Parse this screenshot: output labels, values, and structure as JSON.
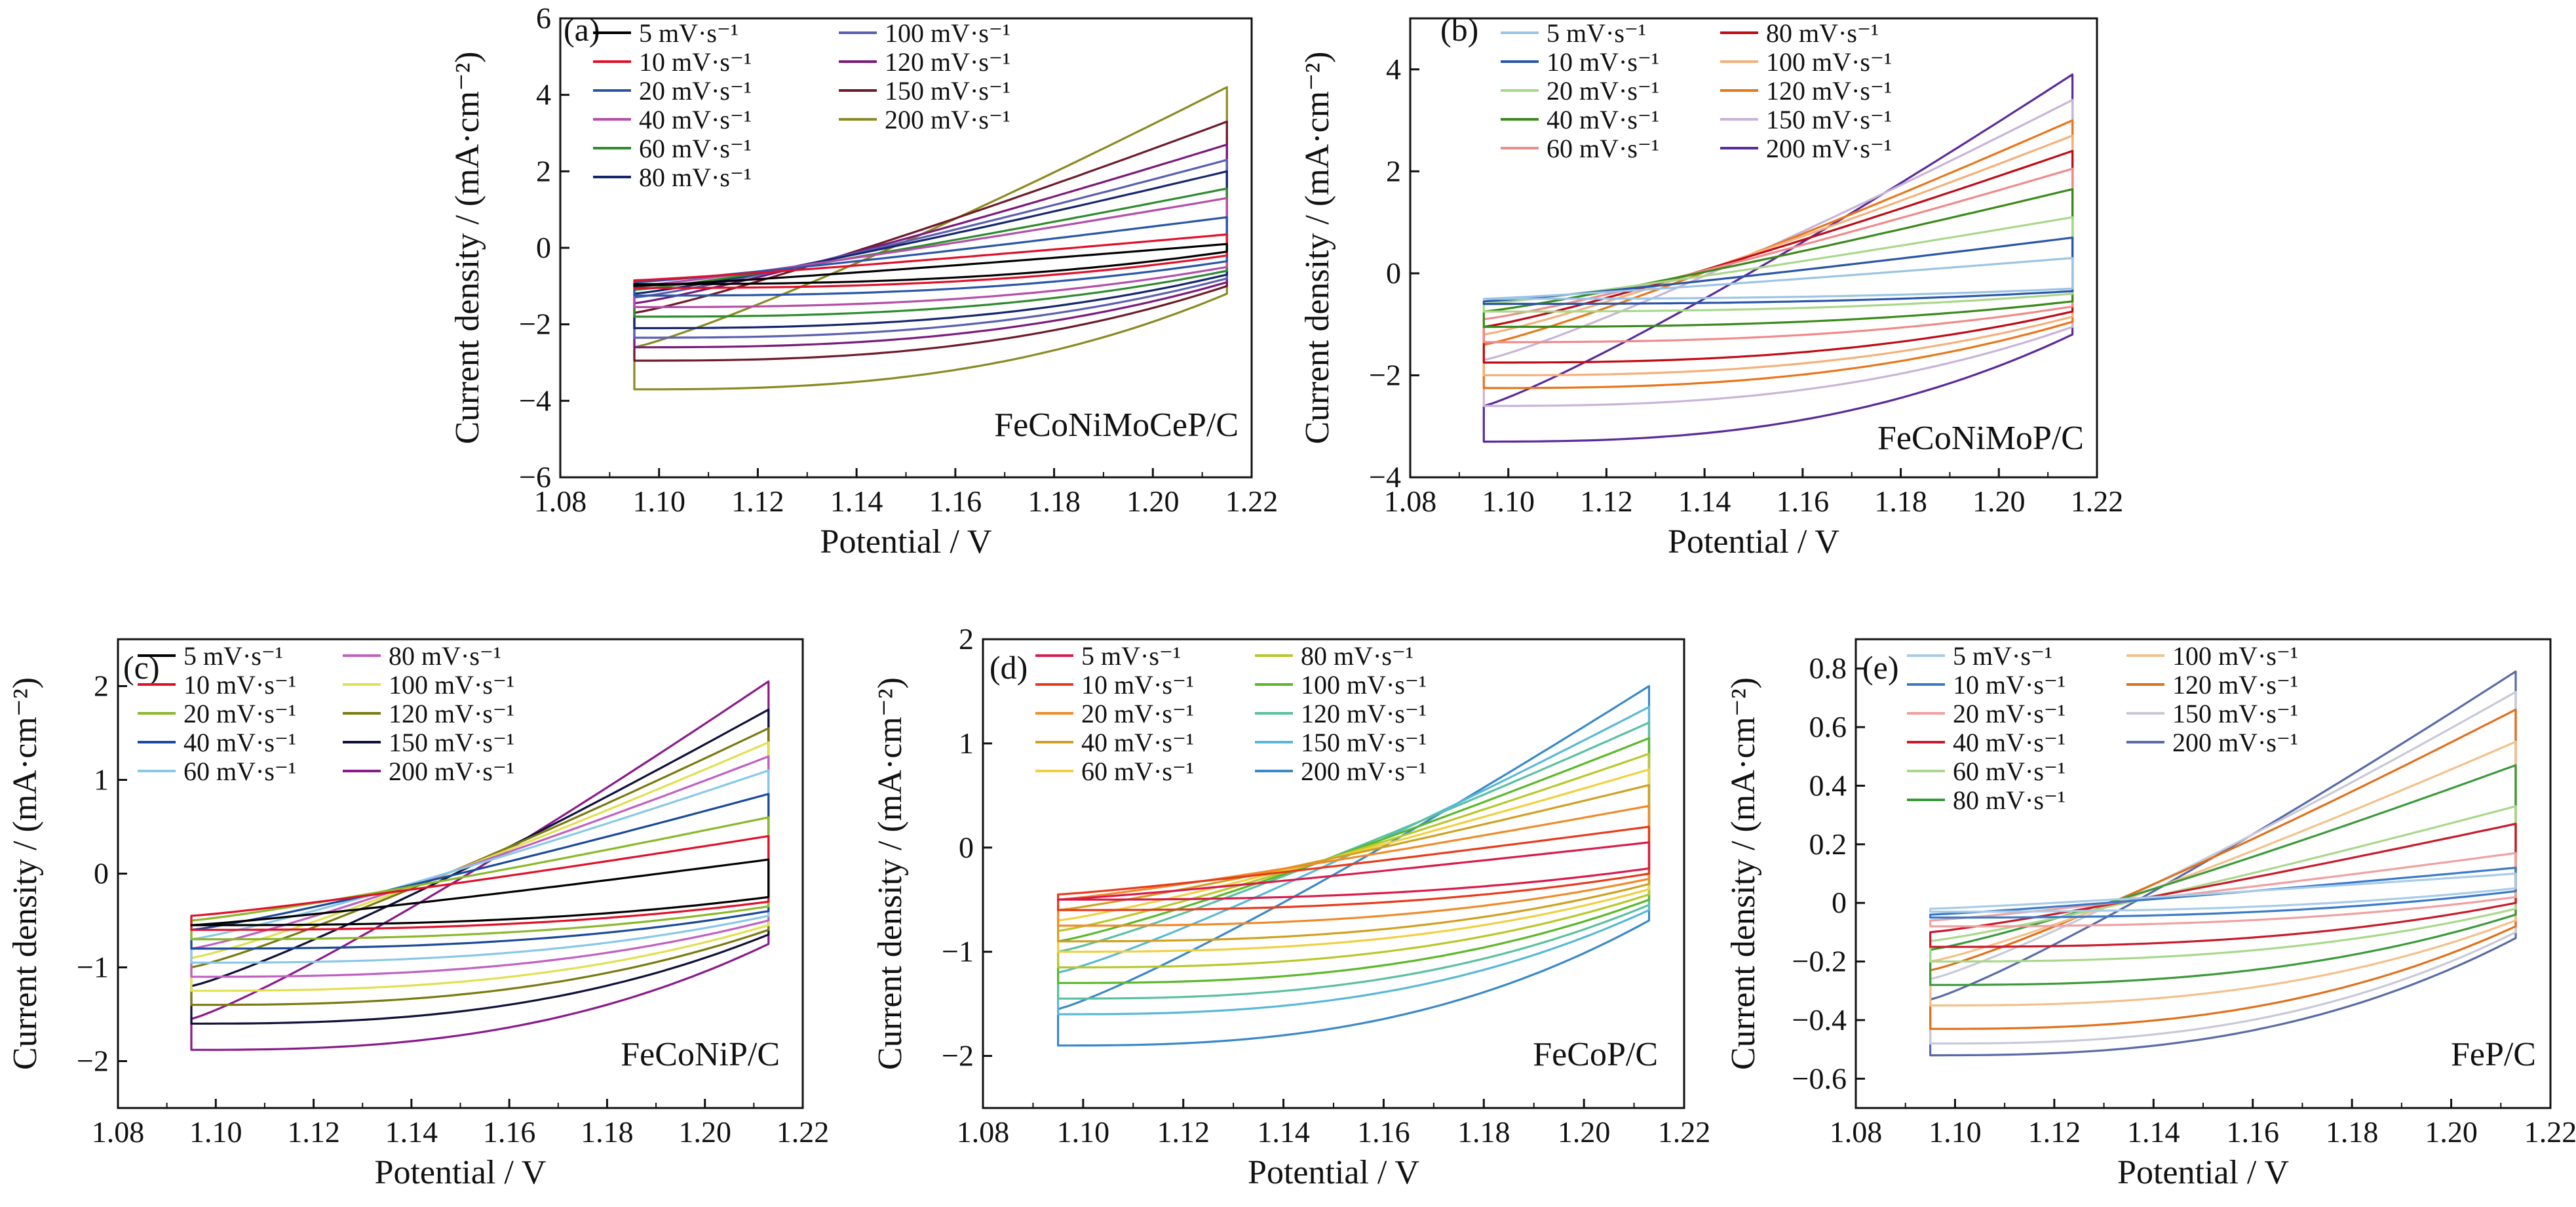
{
  "chart_data": [
    {
      "type": "line",
      "panel_label": "(a)",
      "sample_label": "FeCoNiMoCeP/C",
      "xlabel": "Potential / V",
      "ylabel": "Current density / (mA·cm⁻²)",
      "xlim": [
        1.08,
        1.22
      ],
      "ylim": [
        -6,
        6
      ],
      "x_ticks": [
        "1.08",
        "1.10",
        "1.12",
        "1.14",
        "1.16",
        "1.18",
        "1.20",
        "1.22"
      ],
      "y_ticks": [
        "−6",
        "−4",
        "−2",
        "0",
        "2",
        "4",
        "6"
      ],
      "legend_columns": 2,
      "legend_position": "top-left",
      "x_range": [
        1.095,
        1.215
      ],
      "series": [
        {
          "name": "5 mV·s⁻¹",
          "color": "#000000",
          "upper_start": -1.0,
          "upper_end": 0.1,
          "lower_end": -0.1,
          "lower_start": -0.95
        },
        {
          "name": "10 mV·s⁻¹",
          "color": "#e0102a",
          "upper_start": -0.85,
          "upper_end": 0.35,
          "lower_end": -0.2,
          "lower_start": -1.05
        },
        {
          "name": "20 mV·s⁻¹",
          "color": "#2a56a8",
          "upper_start": -0.9,
          "upper_end": 0.8,
          "lower_end": -0.35,
          "lower_start": -1.25
        },
        {
          "name": "40 mV·s⁻¹",
          "color": "#b44ea8",
          "upper_start": -1.0,
          "upper_end": 1.3,
          "lower_end": -0.5,
          "lower_start": -1.55
        },
        {
          "name": "60 mV·s⁻¹",
          "color": "#2e8b2e",
          "upper_start": -1.1,
          "upper_end": 1.55,
          "lower_end": -0.6,
          "lower_start": -1.8
        },
        {
          "name": "80 mV·s⁻¹",
          "color": "#15266e",
          "upper_start": -1.2,
          "upper_end": 2.0,
          "lower_end": -0.7,
          "lower_start": -2.1
        },
        {
          "name": "100 mV·s⁻¹",
          "color": "#5a5fb0",
          "upper_start": -1.3,
          "upper_end": 2.3,
          "lower_end": -0.8,
          "lower_start": -2.35
        },
        {
          "name": "120 mV·s⁻¹",
          "color": "#7a1a7a",
          "upper_start": -1.45,
          "upper_end": 2.7,
          "lower_end": -0.9,
          "lower_start": -2.6
        },
        {
          "name": "150 mV·s⁻¹",
          "color": "#6e1a2a",
          "upper_start": -1.7,
          "upper_end": 3.3,
          "lower_end": -1.0,
          "lower_start": -2.95
        },
        {
          "name": "200 mV·s⁻¹",
          "color": "#8a8a22",
          "upper_start": -2.6,
          "upper_end": 4.2,
          "lower_end": -1.2,
          "lower_start": -3.7
        }
      ]
    },
    {
      "type": "line",
      "panel_label": "(b)",
      "sample_label": "FeCoNiMoP/C",
      "xlabel": "Potential / V",
      "ylabel": "Current density / (mA·cm⁻²)",
      "xlim": [
        1.08,
        1.22
      ],
      "ylim": [
        -4,
        5
      ],
      "x_ticks": [
        "1.08",
        "1.10",
        "1.12",
        "1.14",
        "1.16",
        "1.18",
        "1.20",
        "1.22"
      ],
      "y_ticks": [
        "−4",
        "−2",
        "0",
        "2",
        "4"
      ],
      "legend_columns": 2,
      "legend_position": "top-left",
      "x_range": [
        1.095,
        1.215
      ],
      "series": [
        {
          "name": "5 mV·s⁻¹",
          "color": "#9cc4e4",
          "upper_start": -0.5,
          "upper_end": 0.3,
          "lower_end": -0.3,
          "lower_start": -0.5
        },
        {
          "name": "10 mV·s⁻¹",
          "color": "#2a56a8",
          "upper_start": -0.55,
          "upper_end": 0.7,
          "lower_end": -0.35,
          "lower_start": -0.6
        },
        {
          "name": "20 mV·s⁻¹",
          "color": "#a8d88a",
          "upper_start": -0.6,
          "upper_end": 1.1,
          "lower_end": -0.4,
          "lower_start": -0.75
        },
        {
          "name": "40 mV·s⁻¹",
          "color": "#3a8a1a",
          "upper_start": -0.75,
          "upper_end": 1.65,
          "lower_end": -0.55,
          "lower_start": -1.05
        },
        {
          "name": "60 mV·s⁻¹",
          "color": "#f08a8a",
          "upper_start": -0.9,
          "upper_end": 2.05,
          "lower_end": -0.65,
          "lower_start": -1.35
        },
        {
          "name": "80 mV·s⁻¹",
          "color": "#c00a14",
          "upper_start": -1.05,
          "upper_end": 2.4,
          "lower_end": -0.75,
          "lower_start": -1.75
        },
        {
          "name": "100 mV·s⁻¹",
          "color": "#f4b07a",
          "upper_start": -1.2,
          "upper_end": 2.7,
          "lower_end": -0.85,
          "lower_start": -2.0
        },
        {
          "name": "120 mV·s⁻¹",
          "color": "#e8761a",
          "upper_start": -1.4,
          "upper_end": 3.0,
          "lower_end": -0.95,
          "lower_start": -2.25
        },
        {
          "name": "150 mV·s⁻¹",
          "color": "#c8b4d8",
          "upper_start": -1.7,
          "upper_end": 3.4,
          "lower_end": -1.05,
          "lower_start": -2.6
        },
        {
          "name": "200 mV·s⁻¹",
          "color": "#5a2a9a",
          "upper_start": -2.6,
          "upper_end": 3.9,
          "lower_end": -1.2,
          "lower_start": -3.3
        }
      ]
    },
    {
      "type": "line",
      "panel_label": "(c)",
      "sample_label": "FeCoNiP/C",
      "xlabel": "Potential / V",
      "ylabel": "Current density / (mA·cm⁻²)",
      "xlim": [
        1.08,
        1.22
      ],
      "ylim": [
        -2.5,
        2.5
      ],
      "x_ticks": [
        "1.08",
        "1.10",
        "1.12",
        "1.14",
        "1.16",
        "1.18",
        "1.20",
        "1.22"
      ],
      "y_ticks": [
        "−2",
        "−1",
        "0",
        "1",
        "2"
      ],
      "legend_columns": 2,
      "legend_position": "top-left",
      "x_range": [
        1.095,
        1.213
      ],
      "series": [
        {
          "name": "5 mV·s⁻¹",
          "color": "#000000",
          "upper_start": -0.55,
          "upper_end": 0.15,
          "lower_end": -0.25,
          "lower_start": -0.55
        },
        {
          "name": "10 mV·s⁻¹",
          "color": "#e0102a",
          "upper_start": -0.45,
          "upper_end": 0.4,
          "lower_end": -0.3,
          "lower_start": -0.6
        },
        {
          "name": "20 mV·s⁻¹",
          "color": "#8ab82a",
          "upper_start": -0.5,
          "upper_end": 0.6,
          "lower_end": -0.35,
          "lower_start": -0.7
        },
        {
          "name": "40 mV·s⁻¹",
          "color": "#1a4a9a",
          "upper_start": -0.6,
          "upper_end": 0.85,
          "lower_end": -0.4,
          "lower_start": -0.8
        },
        {
          "name": "60 mV·s⁻¹",
          "color": "#88c8e8",
          "upper_start": -0.7,
          "upper_end": 1.1,
          "lower_end": -0.45,
          "lower_start": -0.95
        },
        {
          "name": "80 mV·s⁻¹",
          "color": "#c060c0",
          "upper_start": -0.8,
          "upper_end": 1.25,
          "lower_end": -0.5,
          "lower_start": -1.1
        },
        {
          "name": "100 mV·s⁻¹",
          "color": "#e0e050",
          "upper_start": -0.9,
          "upper_end": 1.4,
          "lower_end": -0.55,
          "lower_start": -1.25
        },
        {
          "name": "120 mV·s⁻¹",
          "color": "#7a7a10",
          "upper_start": -1.0,
          "upper_end": 1.55,
          "lower_end": -0.6,
          "lower_start": -1.4
        },
        {
          "name": "150 mV·s⁻¹",
          "color": "#10103a",
          "upper_start": -1.2,
          "upper_end": 1.75,
          "lower_end": -0.65,
          "lower_start": -1.6
        },
        {
          "name": "200 mV·s⁻¹",
          "color": "#8a1a8a",
          "upper_start": -1.55,
          "upper_end": 2.05,
          "lower_end": -0.75,
          "lower_start": -1.88
        }
      ]
    },
    {
      "type": "line",
      "panel_label": "(d)",
      "sample_label": "FeCoP/C",
      "xlabel": "Potential / V",
      "ylabel": "Current density / (mA·cm⁻²)",
      "xlim": [
        1.08,
        1.22
      ],
      "ylim": [
        -2.5,
        2
      ],
      "x_ticks": [
        "1.08",
        "1.10",
        "1.12",
        "1.14",
        "1.16",
        "1.18",
        "1.20",
        "1.22"
      ],
      "y_ticks": [
        "−2",
        "−1",
        "0",
        "1",
        "2"
      ],
      "legend_columns": 2,
      "legend_position": "top-left",
      "x_range": [
        1.095,
        1.213
      ],
      "series": [
        {
          "name": "5 mV·s⁻¹",
          "color": "#d81b4a",
          "upper_start": -0.5,
          "upper_end": 0.05,
          "lower_end": -0.2,
          "lower_start": -0.5
        },
        {
          "name": "10 mV·s⁻¹",
          "color": "#e83a1a",
          "upper_start": -0.45,
          "upper_end": 0.2,
          "lower_end": -0.25,
          "lower_start": -0.6
        },
        {
          "name": "20 mV·s⁻¹",
          "color": "#f08a2a",
          "upper_start": -0.5,
          "upper_end": 0.4,
          "lower_end": -0.3,
          "lower_start": -0.75
        },
        {
          "name": "40 mV·s⁻¹",
          "color": "#d0a020",
          "upper_start": -0.6,
          "upper_end": 0.6,
          "lower_end": -0.35,
          "lower_start": -0.9
        },
        {
          "name": "60 mV·s⁻¹",
          "color": "#f0d040",
          "upper_start": -0.7,
          "upper_end": 0.75,
          "lower_end": -0.4,
          "lower_start": -1.0
        },
        {
          "name": "80 mV·s⁻¹",
          "color": "#b8c82a",
          "upper_start": -0.8,
          "upper_end": 0.9,
          "lower_end": -0.45,
          "lower_start": -1.15
        },
        {
          "name": "100 mV·s⁻¹",
          "color": "#5ab82a",
          "upper_start": -0.9,
          "upper_end": 1.05,
          "lower_end": -0.5,
          "lower_start": -1.3
        },
        {
          "name": "120 mV·s⁻¹",
          "color": "#5ac0a0",
          "upper_start": -1.0,
          "upper_end": 1.2,
          "lower_end": -0.55,
          "lower_start": -1.45
        },
        {
          "name": "150 mV·s⁻¹",
          "color": "#58b8d8",
          "upper_start": -1.2,
          "upper_end": 1.35,
          "lower_end": -0.6,
          "lower_start": -1.6
        },
        {
          "name": "200 mV·s⁻¹",
          "color": "#3a88c8",
          "upper_start": -1.55,
          "upper_end": 1.55,
          "lower_end": -0.7,
          "lower_start": -1.9
        }
      ]
    },
    {
      "type": "line",
      "panel_label": "(e)",
      "sample_label": "FeP/C",
      "xlabel": "Potential / V",
      "ylabel": "Current density / (mA·cm⁻²)",
      "xlim": [
        1.08,
        1.22
      ],
      "ylim": [
        -0.7,
        0.9
      ],
      "x_ticks": [
        "1.08",
        "1.10",
        "1.12",
        "1.14",
        "1.16",
        "1.18",
        "1.20",
        "1.22"
      ],
      "y_ticks": [
        "−0.6",
        "−0.4",
        "−0.2",
        "0",
        "0.2",
        "0.4",
        "0.6",
        "0.8"
      ],
      "legend_columns": 2,
      "legend_position": "top-left",
      "x_range": [
        1.095,
        1.213
      ],
      "series": [
        {
          "name": "5 mV·s⁻¹",
          "color": "#a8cce8",
          "upper_start": -0.02,
          "upper_end": 0.1,
          "lower_end": 0.05,
          "lower_start": -0.03
        },
        {
          "name": "10 mV·s⁻¹",
          "color": "#3a7ac8",
          "upper_start": -0.04,
          "upper_end": 0.12,
          "lower_end": 0.04,
          "lower_start": -0.05
        },
        {
          "name": "20 mV·s⁻¹",
          "color": "#f0a0a0",
          "upper_start": -0.06,
          "upper_end": 0.17,
          "lower_end": 0.02,
          "lower_start": -0.08
        },
        {
          "name": "40 mV·s⁻¹",
          "color": "#c81a2a",
          "upper_start": -0.1,
          "upper_end": 0.27,
          "lower_end": 0.0,
          "lower_start": -0.15
        },
        {
          "name": "60 mV·s⁻¹",
          "color": "#a8d88a",
          "upper_start": -0.13,
          "upper_end": 0.33,
          "lower_end": -0.02,
          "lower_start": -0.2
        },
        {
          "name": "80 mV·s⁻¹",
          "color": "#3a9a3a",
          "upper_start": -0.16,
          "upper_end": 0.47,
          "lower_end": -0.04,
          "lower_start": -0.28
        },
        {
          "name": "100 mV·s⁻¹",
          "color": "#f4c08a",
          "upper_start": -0.2,
          "upper_end": 0.55,
          "lower_end": -0.06,
          "lower_start": -0.35
        },
        {
          "name": "120 mV·s⁻¹",
          "color": "#e0701a",
          "upper_start": -0.23,
          "upper_end": 0.66,
          "lower_end": -0.08,
          "lower_start": -0.43
        },
        {
          "name": "150 mV·s⁻¹",
          "color": "#c8c8d8",
          "upper_start": -0.26,
          "upper_end": 0.72,
          "lower_end": -0.1,
          "lower_start": -0.48
        },
        {
          "name": "200 mV·s⁻¹",
          "color": "#5a6aa8",
          "upper_start": -0.33,
          "upper_end": 0.79,
          "lower_end": -0.12,
          "lower_start": -0.52
        }
      ]
    }
  ]
}
